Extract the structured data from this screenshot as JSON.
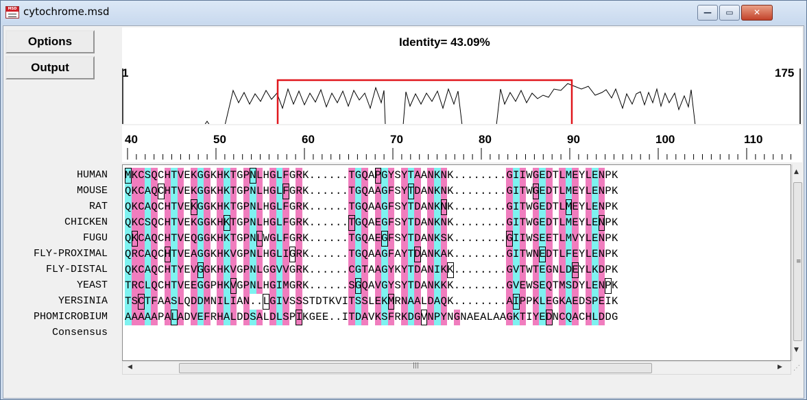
{
  "window": {
    "title": "cytochrome.msd",
    "app_icon": "msd-app-icon",
    "controls": {
      "minimize": "—",
      "maximize": "▭",
      "close": "✕"
    }
  },
  "sidebar": {
    "options_label": "Options",
    "output_label": "Output"
  },
  "identity_plot": {
    "label": "Identity= 43.09%",
    "start": "1",
    "end": "175",
    "selection_color": "#e0161c"
  },
  "ruler": {
    "ticks": [
      "40",
      "50",
      "60",
      "70",
      "80",
      "90",
      "100",
      "110"
    ]
  },
  "alignment": {
    "names": [
      "HUMAN",
      "MOUSE",
      "RAT",
      "CHICKEN",
      "FUGU",
      "FLY-PROXIMAL",
      "FLY-DISTAL",
      "YEAST",
      "YERSINIA",
      "PHOMICROBIUM",
      "Consensus"
    ],
    "sequences": [
      "MKCSQCHTVEKGGKHKTGPNLHGLFGRK......TGQAPGYSYTAANKNK........GIIWGEDTLMEYLENPK",
      "QKCAQCHTVEKGGKHKTGPNLHGLFGRK......TGQAAGFSYTDANKNK........GITWGEDTLMEYLENPK",
      "QKCAQCHTVEKGGKHKTGPNLHGLFGRK......TGQAAGFSYTDANKNK........GITWGEDTLMEYLENPK",
      "QKCSQCHTVEKGGKHKTGPNLHGLFGRK......TGQAEGFSYTDANKNK........GITWGEDTLMEYLENPK",
      "QKCAQCHTVEQGGKHKTGPNLWGLFGRK......TGQAEGFSYTDANKSK........GIIWSEETLMVYLENPK",
      "QRCAQCHTVEAGGKHKVGPNLHGLIGRK......TGQAAGFAYTDANKAK........GITWNEDTLFEYLENPK",
      "QKCAQCHTYEVGGKHKVGPNLGGVVGRK......CGTAAGYKYTDANIKK........GVTWTEGNLDEYLKDPK",
      "TRCLQCHTVEEGGPHKVGPNLHGIMGRK......SGQAVGYSYTDANKKK........GVEWSEQTMSDYLENPK",
      "TSCTFAASLQDDMNILIAN..LGIVSSSTDTKVITSSLEKMRNAALDAQK........AIPPKLEGKAEDSPEIK",
      "AAAAAPALADVEFRHALDDSALDLSPIKGEE..ITDAVKSFRKDGVNPYNGNAEALAAGKTIYEDNCQACHLDDG",
      ""
    ]
  }
}
